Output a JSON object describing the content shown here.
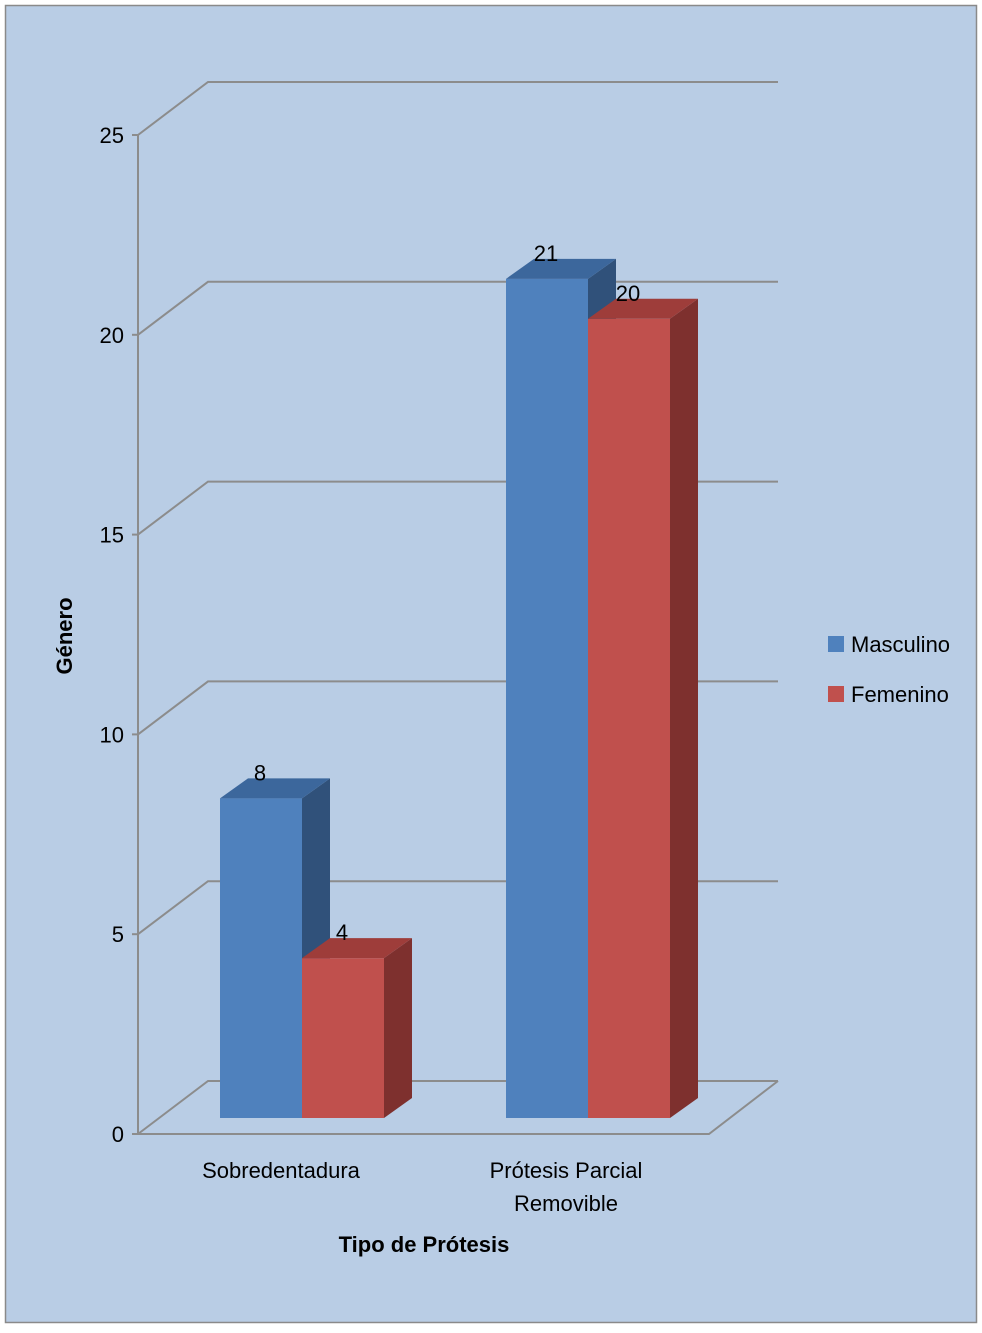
{
  "chart_data": {
    "type": "bar",
    "categories": [
      "Sobredentadura",
      "Prótesis Parcial Removible"
    ],
    "category_lines": [
      [
        "Sobredentadura"
      ],
      [
        "Prótesis Parcial",
        "Removible"
      ]
    ],
    "series": [
      {
        "name": "Masculino",
        "values": [
          8,
          21
        ],
        "labels": [
          "8",
          "21"
        ]
      },
      {
        "name": "Femenino",
        "values": [
          4,
          20
        ],
        "labels": [
          "4",
          "20"
        ]
      }
    ],
    "xlabel": "Tipo de Prótesis",
    "ylabel": "Género",
    "ylim": [
      0,
      25
    ],
    "yticks": [
      0,
      5,
      10,
      15,
      20,
      25
    ],
    "ytick_labels": [
      "0",
      "5",
      "10",
      "15",
      "20",
      "25"
    ],
    "grid": true,
    "legend_position": "right",
    "style": "3d-clustered-column",
    "colors": {
      "background": "#b9cde5",
      "border": "#8a8a8a",
      "gridline": "#8c8c8c",
      "series": [
        {
          "front": "#4f81bd",
          "side": "#30517a",
          "top": "#3c679c"
        },
        {
          "front": "#c0504d",
          "side": "#7e302e",
          "top": "#9e3d3a"
        }
      ]
    }
  }
}
